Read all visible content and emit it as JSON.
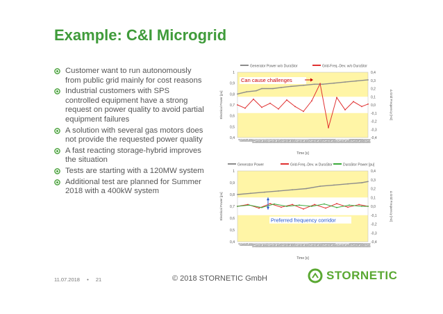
{
  "slide": {
    "title": "Example: C&I Microgrid",
    "bullets": [
      "Customer want to run autonomously from public grid mainly for cost reasons",
      "Industrial customers with SPS controlled equipment have a strong request on power quality to avoid partial equipment failures",
      "A solution with several gas motors does not provide the requested power quality",
      "A fast reacting storage-hybrid improves the situation",
      "Tests are starting with a 120MW system",
      "Additional test are planned for Summer 2018 with a 400kW system"
    ]
  },
  "footer": {
    "date": "11.07.2018",
    "separator": "•",
    "page": "21",
    "copyright": "© 2018 STORNETIC GmbH",
    "logo_text": "STORNETIC"
  },
  "colors": {
    "title_green": "#3f9b3a",
    "band_yellow": "#fff5a6",
    "generator_gray": "#8c8c8c",
    "freq_red": "#e03030",
    "duraStor_green": "#3aaa3a",
    "annotation_red": "#cc0000",
    "annotation_blue": "#2255cc"
  },
  "chart_data": [
    {
      "type": "line",
      "legend": [
        "Generator Power w/o DuraStor",
        "Grid-Freq.-Dev. w/o DuraStor"
      ],
      "annotation": "Can cause challenges",
      "ylabel": "Electrical Power [pu]",
      "y2label": "Δ Grid Frequency [Hz]",
      "xlabel": "Time [s]",
      "ylim": [
        0.4,
        1
      ],
      "y2lim": [
        -0.4,
        0.4
      ],
      "yticks": [
        "1",
        "0,9",
        "0,8",
        "0,7",
        "0,6",
        "0,5",
        "0,4"
      ],
      "y2ticks": [
        "0,4",
        "0,3",
        "0,2",
        "0,1",
        "0,0",
        "-0,1",
        "-0,2",
        "-0,3",
        "-0,4"
      ],
      "xticks": [
        "5",
        "15",
        "25",
        "35",
        "45",
        "55",
        "65",
        "75",
        "85",
        "95",
        "105",
        "115",
        "125",
        "135",
        "145",
        "155",
        "165",
        "175",
        "185",
        "195",
        "205",
        "215",
        "225",
        "235",
        "245",
        "255",
        "265",
        "275",
        "285",
        "295",
        "305",
        "315",
        "325",
        "335",
        "345",
        "355",
        "365",
        "375",
        "385",
        "395",
        "405",
        "415",
        "425",
        "435",
        "445",
        "455",
        "465",
        "475",
        "485",
        "495",
        "505",
        "515",
        "525",
        "535",
        "545",
        "555",
        "565",
        "575",
        "585",
        "595",
        "605",
        "615",
        "625",
        "635",
        "645",
        "655",
        "665",
        "675",
        "685",
        "695",
        "705",
        "715",
        "725",
        "735",
        "745",
        "755",
        "765",
        "775",
        "785",
        "795",
        "805",
        "815",
        "825",
        "835",
        "845",
        "855",
        "865",
        "875",
        "885",
        "895",
        "905",
        "915",
        "925",
        "935",
        "945"
      ],
      "series": [
        {
          "name": "Generator Power w/o DuraStor",
          "axis": "left",
          "x": [
            5,
            70,
            140,
            180,
            260,
            320,
            390,
            480,
            560,
            620,
            700,
            780,
            860,
            945
          ],
          "values": [
            0.8,
            0.82,
            0.83,
            0.85,
            0.85,
            0.86,
            0.87,
            0.88,
            0.89,
            0.89,
            0.9,
            0.91,
            0.92,
            0.93
          ]
        },
        {
          "name": "Grid-Freq.-Dev. w/o DuraStor",
          "axis": "right",
          "x": [
            5,
            60,
            120,
            180,
            240,
            300,
            360,
            420,
            480,
            540,
            600,
            660,
            720,
            780,
            840,
            900,
            945
          ],
          "values": [
            0.0,
            -0.04,
            0.07,
            -0.03,
            0.02,
            -0.05,
            0.06,
            -0.02,
            -0.08,
            0.05,
            0.26,
            -0.28,
            0.09,
            -0.06,
            0.04,
            -0.02,
            0.01
          ]
        }
      ]
    },
    {
      "type": "line",
      "legend": [
        "Generator Power",
        "Grid-Freq.-Dev. w DuraStor",
        "DuraStor Power [pu]"
      ],
      "annotation": "Preferred frequency corridor",
      "ylabel": "Electrical Power [pu]",
      "y2label": "Δ Grid Frequency [Hz]",
      "xlabel": "Time [s]",
      "ylim": [
        0.4,
        1
      ],
      "y2lim": [
        -0.4,
        0.4
      ],
      "yticks": [
        "1",
        "0,9",
        "0,8",
        "0,7",
        "0,6",
        "0,5",
        "0,4"
      ],
      "y2ticks": [
        "0,4",
        "0,3",
        "0,2",
        "0,1",
        "0,0",
        "-0,1",
        "-0,2",
        "-0,3",
        "-0,4"
      ],
      "xticks": [
        "5",
        "15",
        "25",
        "35",
        "45",
        "55",
        "65",
        "75",
        "85",
        "95",
        "105",
        "115",
        "125",
        "135",
        "145",
        "155",
        "165",
        "175",
        "185",
        "195",
        "205",
        "215",
        "225",
        "235",
        "245",
        "255",
        "265",
        "275",
        "285",
        "295",
        "305",
        "315",
        "325",
        "335",
        "345",
        "355",
        "365",
        "375",
        "385",
        "395",
        "405",
        "415",
        "425",
        "435",
        "445",
        "455",
        "465",
        "475",
        "485",
        "495",
        "505",
        "515",
        "525",
        "535",
        "545",
        "555",
        "565",
        "575",
        "585",
        "595",
        "605",
        "615",
        "625",
        "635",
        "645",
        "655",
        "665",
        "675",
        "685",
        "695",
        "705",
        "715",
        "725",
        "735",
        "745",
        "755",
        "765",
        "775",
        "785",
        "795",
        "805",
        "815",
        "825",
        "835",
        "845",
        "855",
        "865",
        "875",
        "885",
        "895",
        "905",
        "915",
        "925",
        "935",
        "945"
      ],
      "series": [
        {
          "name": "Generator Power",
          "axis": "left",
          "x": [
            5,
            100,
            200,
            300,
            400,
            500,
            600,
            700,
            800,
            900,
            945
          ],
          "values": [
            0.8,
            0.81,
            0.82,
            0.83,
            0.84,
            0.85,
            0.87,
            0.88,
            0.89,
            0.9,
            0.91
          ]
        },
        {
          "name": "Grid-Freq.-Dev. w DuraStor",
          "axis": "right",
          "x": [
            5,
            80,
            160,
            240,
            320,
            400,
            480,
            560,
            640,
            720,
            800,
            880,
            945
          ],
          "values": [
            0.0,
            0.02,
            -0.02,
            0.03,
            -0.01,
            0.02,
            -0.03,
            0.02,
            -0.02,
            0.03,
            -0.01,
            0.02,
            0.0
          ]
        },
        {
          "name": "DuraStor Power [pu]",
          "axis": "left",
          "x": [
            5,
            90,
            180,
            270,
            360,
            450,
            540,
            630,
            720,
            810,
            900,
            945
          ],
          "values": [
            0.7,
            0.71,
            0.69,
            0.72,
            0.7,
            0.71,
            0.7,
            0.72,
            0.69,
            0.71,
            0.7,
            0.7
          ]
        }
      ]
    }
  ]
}
